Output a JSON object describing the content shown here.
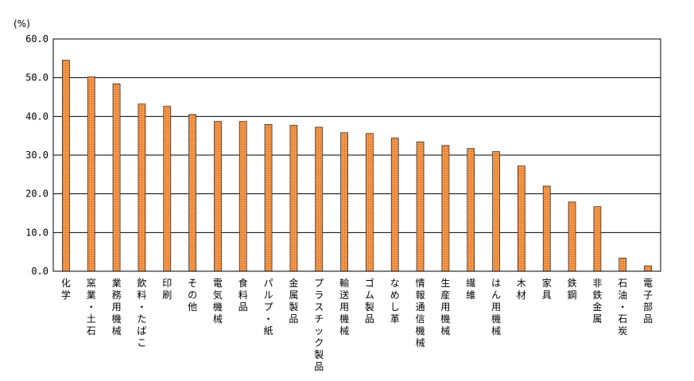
{
  "chart_data": {
    "type": "bar",
    "ylabel": "(%)",
    "ylim": [
      0,
      60
    ],
    "yticks": [
      "0.0",
      "10.0",
      "20.0",
      "30.0",
      "40.0",
      "50.0",
      "60.0"
    ],
    "grid": true,
    "legend": "none",
    "bar_color": "#f79646",
    "bar_stroke": "#333333",
    "categories": [
      "化学",
      "窯業・土石",
      "業務用機械",
      "飲料・たばこ",
      "印刷",
      "その他",
      "電気機械",
      "食料品",
      "パルプ・紙",
      "金属製品",
      "プラスチック製品",
      "輸送用機械",
      "ゴム製品",
      "なめし革",
      "情報通信機械",
      "生産用機械",
      "繊維",
      "はん用機械",
      "木材",
      "家具",
      "鉄鋼",
      "非鉄金属",
      "石油・石炭",
      "電子部品"
    ],
    "values": [
      54.5,
      50.2,
      48.4,
      43.2,
      42.6,
      40.5,
      38.7,
      38.7,
      37.9,
      37.7,
      37.2,
      35.8,
      35.6,
      34.4,
      33.4,
      32.5,
      31.7,
      30.9,
      27.2,
      22.0,
      17.9,
      16.7,
      3.4,
      1.4
    ]
  }
}
